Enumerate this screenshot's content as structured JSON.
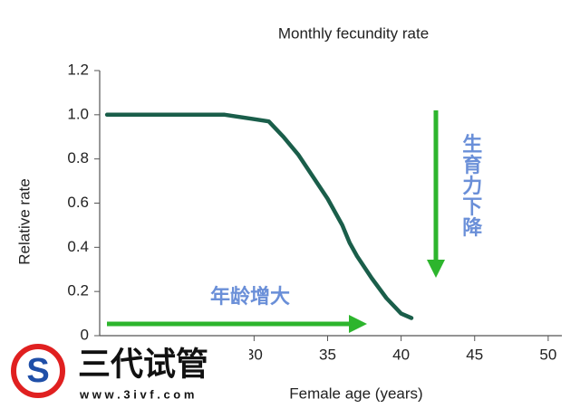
{
  "chart_data": {
    "type": "line",
    "title": "Monthly fecundity rate",
    "x_label": "Female age (years)",
    "y_label": "Relative rate",
    "x": [
      20,
      25,
      28,
      30,
      31,
      32,
      33,
      34,
      35,
      36,
      36.5,
      37,
      38,
      39,
      40,
      40.7
    ],
    "values": [
      1.0,
      1.0,
      1.0,
      0.98,
      0.97,
      0.9,
      0.82,
      0.72,
      0.62,
      0.5,
      0.42,
      0.36,
      0.26,
      0.17,
      0.1,
      0.08
    ],
    "color": "#1a5e4a",
    "xlim": [
      19.5,
      50.5
    ],
    "xticks": [
      30,
      35,
      40,
      45,
      50
    ],
    "ylim": [
      0,
      1.2
    ],
    "yticks": [
      0,
      0.2,
      0.4,
      0.6,
      0.8,
      {
        "value": 1,
        "label": "1.0"
      },
      1.2
    ],
    "annotations": [
      "年龄增大",
      "生育力下降"
    ]
  },
  "watermark": {
    "name": "三代试管",
    "url": "w w w . 3 i v f . c o m"
  }
}
